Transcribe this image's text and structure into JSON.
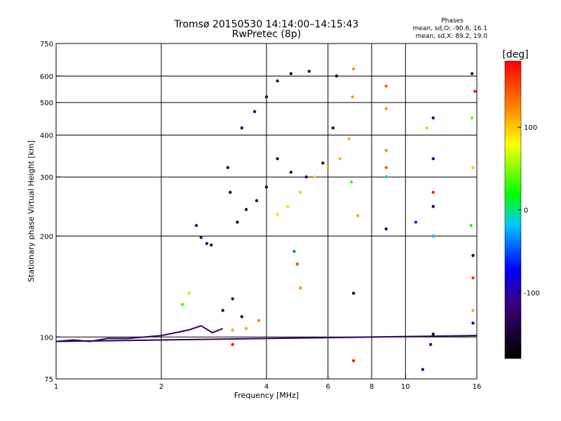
{
  "chart_data": {
    "type": "scatter",
    "title": "Tromsø 20150530 14:14:00–14:15:43",
    "subtitle": "RwPretec (8p)",
    "xlabel": "Frequency [MHz]",
    "ylabel": "Stationary phase Virtual Height [km]",
    "x_scale": "log",
    "y_scale": "log",
    "xlim": [
      1,
      16
    ],
    "ylim": [
      75,
      750
    ],
    "x_ticks": [
      1,
      2,
      4,
      6,
      8,
      10,
      16
    ],
    "y_ticks": [
      75,
      100,
      200,
      300,
      400,
      500,
      600,
      750
    ],
    "x_gridlines": [
      2,
      4,
      6,
      8,
      10
    ],
    "y_gridlines": [
      100,
      200,
      300,
      400,
      500,
      600
    ],
    "grid": true,
    "stats": {
      "header": "Phases",
      "line_o": "mean, sd,O: -90.6, 16.1",
      "line_x": "mean, sd,X:  89.2, 19.0"
    },
    "colorbar": {
      "label": "[deg]",
      "range": [
        -180,
        180
      ],
      "ticks": [
        100,
        0,
        -100
      ],
      "colormap": "rainbow"
    },
    "series": [
      {
        "trace": [
          {
            "x": [
              1.0,
              16.0
            ],
            "y": [
              97,
              101
            ],
            "phase": -130
          },
          {
            "x": [
              1.0,
              1.12,
              1.25,
              1.4,
              1.6,
              1.8,
              2.0,
              2.2,
              2.4,
              2.6,
              2.8,
              3.0
            ],
            "y": [
              97,
              98,
              97,
              99,
              99,
              100,
              101,
              103,
              105,
              108,
              103,
              106
            ],
            "phase": -125
          }
        ]
      },
      {
        "points": [
          {
            "x": 2.52,
            "y": 215,
            "phase": -120
          },
          {
            "x": 2.6,
            "y": 198,
            "phase": -120
          },
          {
            "x": 2.7,
            "y": 190,
            "phase": -120
          },
          {
            "x": 2.78,
            "y": 188,
            "phase": -120
          },
          {
            "x": 3.1,
            "y": 320,
            "phase": -140
          },
          {
            "x": 3.15,
            "y": 270,
            "phase": -140
          },
          {
            "x": 3.3,
            "y": 220,
            "phase": -140
          },
          {
            "x": 3.5,
            "y": 240,
            "phase": -140
          },
          {
            "x": 3.75,
            "y": 255,
            "phase": -140
          },
          {
            "x": 4.0,
            "y": 280,
            "phase": -135
          },
          {
            "x": 4.3,
            "y": 340,
            "phase": -135
          },
          {
            "x": 4.7,
            "y": 310,
            "phase": -135
          },
          {
            "x": 5.2,
            "y": 300,
            "phase": -135
          },
          {
            "x": 5.8,
            "y": 330,
            "phase": -135
          },
          {
            "x": 6.2,
            "y": 420,
            "phase": -135
          },
          {
            "x": 6.35,
            "y": 600,
            "phase": -135
          },
          {
            "x": 3.4,
            "y": 420,
            "phase": -130
          },
          {
            "x": 3.7,
            "y": 470,
            "phase": -130
          },
          {
            "x": 4.0,
            "y": 520,
            "phase": -130
          },
          {
            "x": 4.3,
            "y": 580,
            "phase": -130
          },
          {
            "x": 4.7,
            "y": 610,
            "phase": -130
          },
          {
            "x": 5.3,
            "y": 620,
            "phase": -130
          },
          {
            "x": 3.0,
            "y": 120,
            "phase": -140
          },
          {
            "x": 3.2,
            "y": 130,
            "phase": -140
          },
          {
            "x": 3.4,
            "y": 115,
            "phase": -140
          }
        ]
      },
      {
        "points": [
          {
            "x": 4.3,
            "y": 232,
            "phase": 90
          },
          {
            "x": 4.6,
            "y": 245,
            "phase": 95
          },
          {
            "x": 5.0,
            "y": 270,
            "phase": 100
          },
          {
            "x": 5.5,
            "y": 300,
            "phase": 100
          },
          {
            "x": 6.0,
            "y": 320,
            "phase": 105
          },
          {
            "x": 6.5,
            "y": 340,
            "phase": 105
          },
          {
            "x": 6.9,
            "y": 390,
            "phase": 110
          },
          {
            "x": 7.05,
            "y": 520,
            "phase": 115
          },
          {
            "x": 7.1,
            "y": 630,
            "phase": 120
          },
          {
            "x": 3.2,
            "y": 105,
            "phase": 110
          },
          {
            "x": 3.5,
            "y": 106,
            "phase": 110
          },
          {
            "x": 3.8,
            "y": 112,
            "phase": 120
          }
        ]
      },
      {
        "points": [
          {
            "x": 8.8,
            "y": 560,
            "phase": 140
          },
          {
            "x": 8.8,
            "y": 480,
            "phase": 120
          },
          {
            "x": 8.8,
            "y": 360,
            "phase": 120
          },
          {
            "x": 8.8,
            "y": 320,
            "phase": 140
          },
          {
            "x": 8.8,
            "y": 300,
            "phase": -10
          },
          {
            "x": 8.8,
            "y": 210,
            "phase": -120
          },
          {
            "x": 10.7,
            "y": 220,
            "phase": -60
          },
          {
            "x": 11.5,
            "y": 420,
            "phase": 100
          },
          {
            "x": 12.0,
            "y": 450,
            "phase": -110
          },
          {
            "x": 12.0,
            "y": 340,
            "phase": -110
          },
          {
            "x": 12.0,
            "y": 270,
            "phase": 170
          },
          {
            "x": 12.0,
            "y": 245,
            "phase": -150
          },
          {
            "x": 12.0,
            "y": 200,
            "phase": -20
          },
          {
            "x": 12.0,
            "y": 102,
            "phase": -150
          },
          {
            "x": 11.8,
            "y": 95,
            "phase": -110
          },
          {
            "x": 11.2,
            "y": 80,
            "phase": -110
          },
          {
            "x": 15.5,
            "y": 610,
            "phase": -120
          },
          {
            "x": 15.8,
            "y": 540,
            "phase": 170
          },
          {
            "x": 15.5,
            "y": 450,
            "phase": 40
          },
          {
            "x": 15.6,
            "y": 320,
            "phase": 100
          },
          {
            "x": 15.4,
            "y": 215,
            "phase": 20
          },
          {
            "x": 15.6,
            "y": 175,
            "phase": -140
          },
          {
            "x": 15.6,
            "y": 150,
            "phase": 160
          },
          {
            "x": 15.6,
            "y": 120,
            "phase": 110
          },
          {
            "x": 15.6,
            "y": 110,
            "phase": -100
          },
          {
            "x": 7.1,
            "y": 85,
            "phase": 170
          },
          {
            "x": 7.1,
            "y": 135,
            "phase": -140
          },
          {
            "x": 7.3,
            "y": 230,
            "phase": 110
          },
          {
            "x": 7.0,
            "y": 290,
            "phase": 30
          },
          {
            "x": 4.8,
            "y": 180,
            "phase": -40
          },
          {
            "x": 4.9,
            "y": 165,
            "phase": 150
          },
          {
            "x": 5.0,
            "y": 140,
            "phase": 120
          },
          {
            "x": 2.4,
            "y": 135,
            "phase": 60
          },
          {
            "x": 3.2,
            "y": 95,
            "phase": 170
          },
          {
            "x": 2.3,
            "y": 125,
            "phase": 30
          }
        ]
      }
    ]
  }
}
